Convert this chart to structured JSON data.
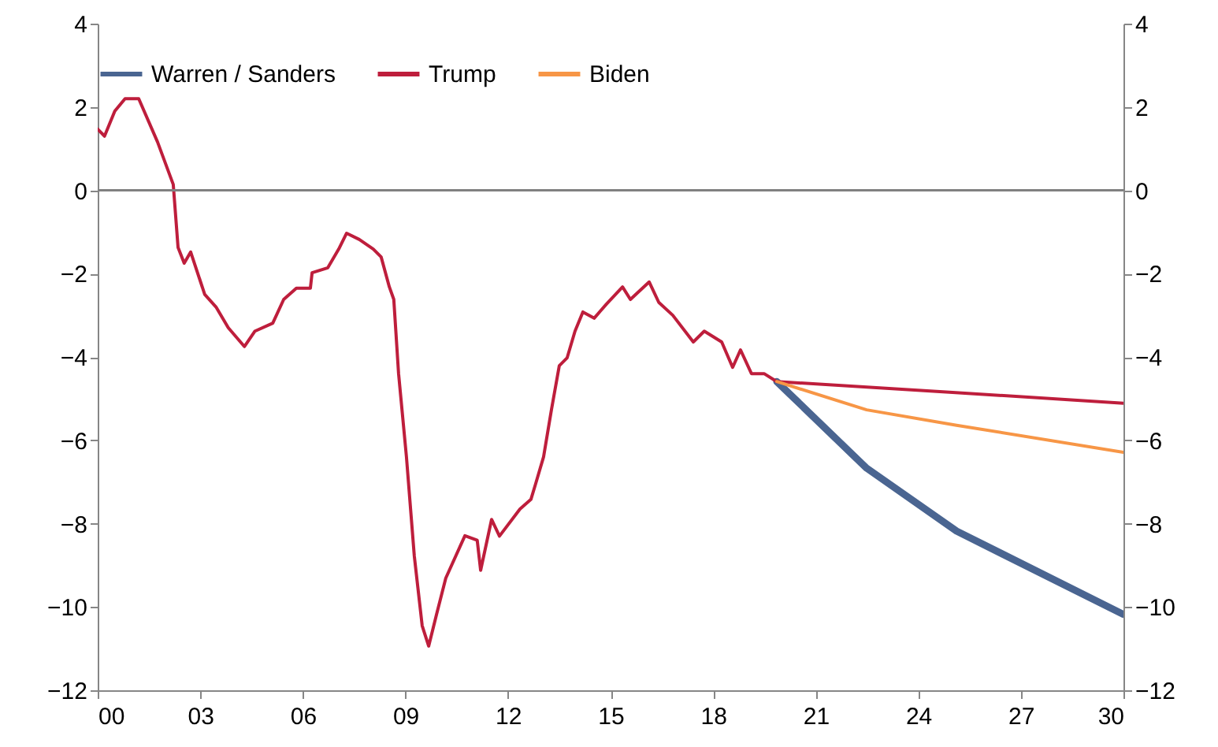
{
  "chart_data": {
    "type": "line",
    "xlim": [
      2000,
      2030
    ],
    "xticks": [
      {
        "value": 2000,
        "label": "00"
      },
      {
        "value": 2003,
        "label": "03"
      },
      {
        "value": 2006,
        "label": "06"
      },
      {
        "value": 2009,
        "label": "09"
      },
      {
        "value": 2012,
        "label": "12"
      },
      {
        "value": 2015,
        "label": "15"
      },
      {
        "value": 2018,
        "label": "18"
      },
      {
        "value": 2021,
        "label": "21"
      },
      {
        "value": 2024,
        "label": "24"
      },
      {
        "value": 2027,
        "label": "27"
      },
      {
        "value": 2030,
        "label": "30"
      }
    ],
    "ylim": [
      -12,
      4
    ],
    "yticks": [
      -12,
      -10,
      -8,
      -6,
      -4,
      -2,
      0,
      2,
      4
    ],
    "y2lim": [
      -12,
      4
    ],
    "y2ticks": [
      -12,
      -10,
      -8,
      -6,
      -4,
      -2,
      0,
      2,
      4
    ],
    "grid": false,
    "legend": "top",
    "line_style": "solid",
    "marker": "none",
    "ref_lines": [
      {
        "axis": "y",
        "value": 0,
        "color": "#808080"
      }
    ],
    "series": [
      {
        "name": "Warren / Sanders",
        "color": "#4a6591",
        "x": [
          2019.86,
          2022.49,
          2025.12,
          2030
        ],
        "values": [
          -4.59,
          -6.67,
          -8.18,
          -10.18
        ]
      },
      {
        "name": "Trump",
        "color": "#be1e3c",
        "x": [
          2000,
          2000.2,
          2000.5,
          2000.8,
          2001.2,
          2001.75,
          2002.21,
          2002.35,
          2002.53,
          2002.72,
          2003.13,
          2003.46,
          2003.82,
          2004.29,
          2004.6,
          2005.12,
          2005.44,
          2005.81,
          2006.22,
          2006.27,
          2006.73,
          2007.05,
          2007.28,
          2007.65,
          2008.06,
          2008.29,
          2008.53,
          2008.66,
          2008.8,
          2009.03,
          2009.26,
          2009.49,
          2009.68,
          2009.91,
          2010.18,
          2010.74,
          2011.1,
          2011.2,
          2011.52,
          2011.75,
          2012.35,
          2012.67,
          2012.81,
          2013.04,
          2013.27,
          2013.5,
          2013.73,
          2013.96,
          2014.19,
          2014.52,
          2014.88,
          2015.35,
          2015.58,
          2016.13,
          2016.41,
          2016.82,
          2017.42,
          2017.74,
          2018.25,
          2018.57,
          2018.8,
          2019.12,
          2019.49,
          2019.86,
          2025,
          2030
        ],
        "values": [
          1.47,
          1.3,
          1.9,
          2.2,
          2.2,
          1.16,
          0.14,
          -1.37,
          -1.75,
          -1.48,
          -2.5,
          -2.8,
          -3.3,
          -3.75,
          -3.38,
          -3.19,
          -2.62,
          -2.35,
          -2.35,
          -1.98,
          -1.86,
          -1.41,
          -1.03,
          -1.18,
          -1.41,
          -1.6,
          -2.32,
          -2.62,
          -4.4,
          -6.4,
          -8.78,
          -10.45,
          -10.94,
          -10.18,
          -9.31,
          -8.29,
          -8.4,
          -9.12,
          -7.9,
          -8.3,
          -7.65,
          -7.42,
          -7.04,
          -6.4,
          -5.27,
          -4.21,
          -4.02,
          -3.38,
          -2.92,
          -3.07,
          -2.73,
          -2.32,
          -2.62,
          -2.2,
          -2.69,
          -3.0,
          -3.64,
          -3.38,
          -3.64,
          -4.25,
          -3.83,
          -4.4,
          -4.4,
          -4.59,
          -4.85,
          -5.11
        ]
      },
      {
        "name": "Biden",
        "color": "#f79646",
        "x": [
          2019.86,
          2022.49,
          2025.12,
          2030
        ],
        "values": [
          -4.59,
          -5.27,
          -5.64,
          -6.29
        ]
      }
    ]
  }
}
